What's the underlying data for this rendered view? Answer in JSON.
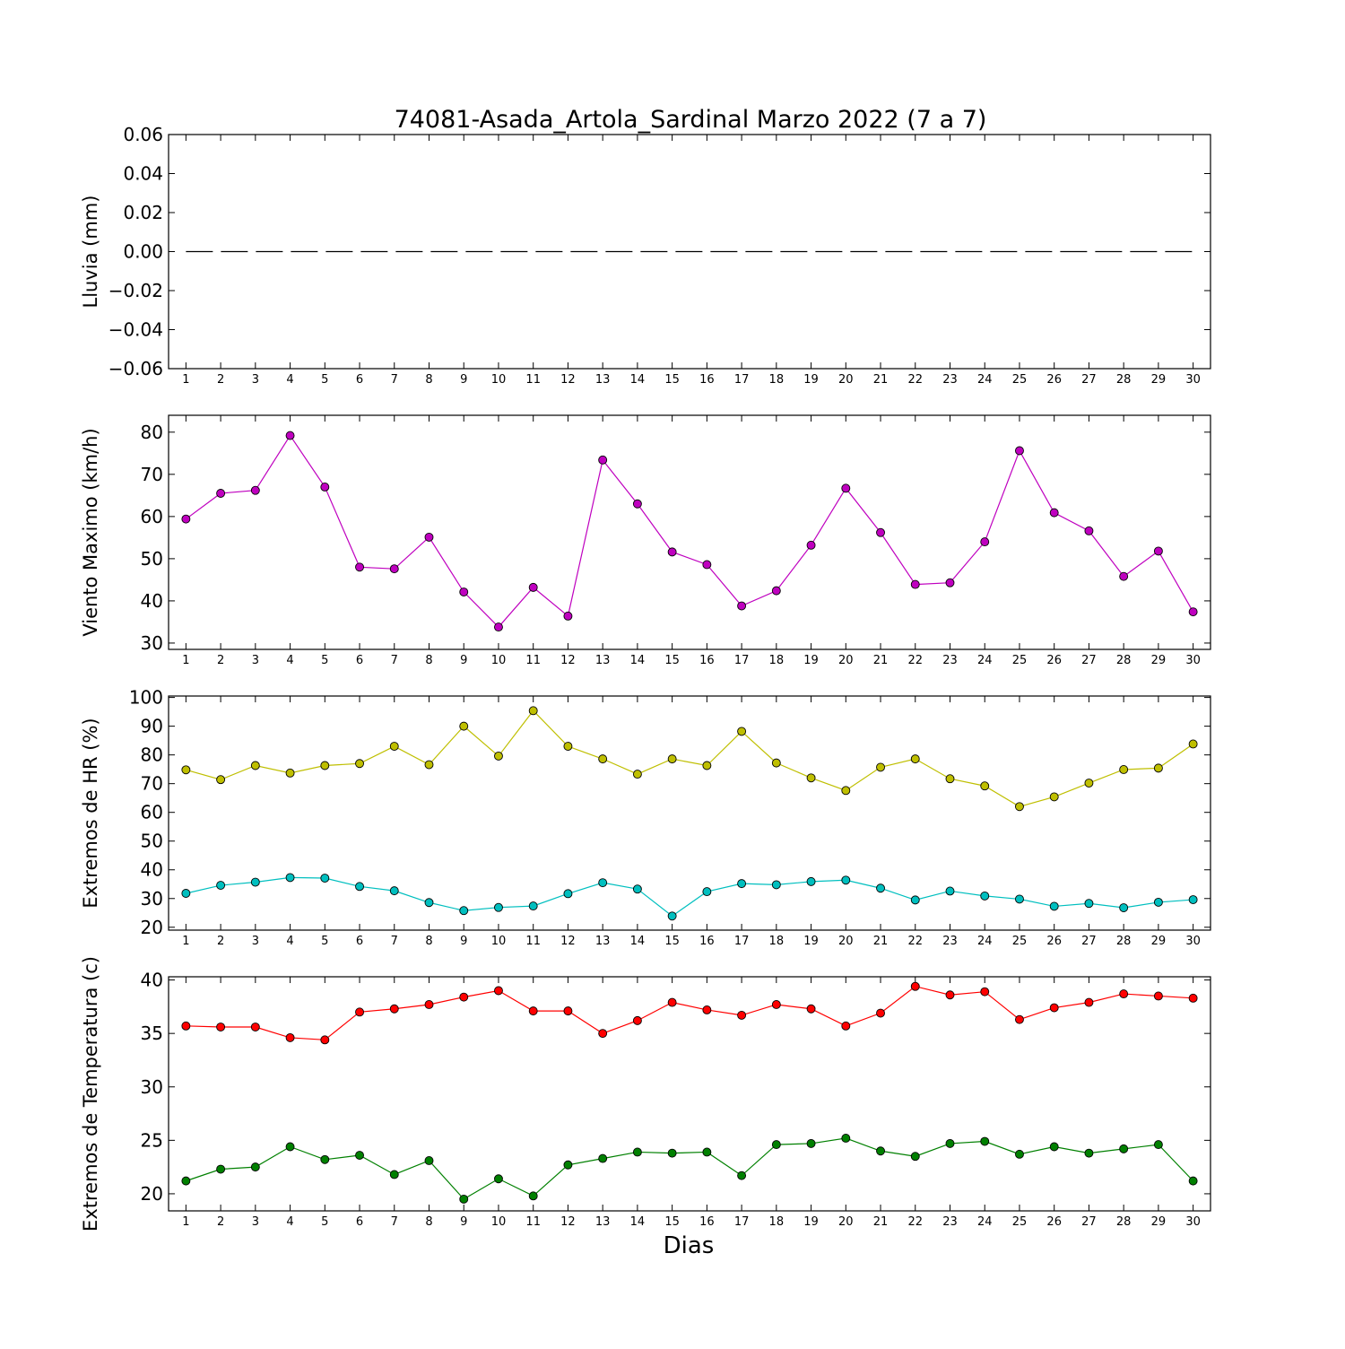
{
  "figure": {
    "title": "74081-Asada_Artola_Sardinal Marzo 2022  (7 a 7)",
    "xlabel": "Dias"
  },
  "chart_data": [
    {
      "type": "line",
      "ylabel": "Lluvia (mm)",
      "x": [
        1,
        2,
        3,
        4,
        5,
        6,
        7,
        8,
        9,
        10,
        11,
        12,
        13,
        14,
        15,
        16,
        17,
        18,
        19,
        20,
        21,
        22,
        23,
        24,
        25,
        26,
        27,
        28,
        29,
        30
      ],
      "xlim": [
        0.5,
        30.5
      ],
      "ylim": [
        -0.06,
        0.06
      ],
      "yticks": [
        -0.06,
        -0.04,
        -0.02,
        0.0,
        0.02,
        0.04,
        0.06
      ],
      "ytick_labels": [
        "−0.06",
        "−0.04",
        "−0.02",
        "0.00",
        "0.02",
        "0.04",
        "0.06"
      ],
      "series": [
        {
          "color": "#000000",
          "style": "dashed",
          "markers": false,
          "values": [
            0,
            0,
            0,
            0,
            0,
            0,
            0,
            0,
            0,
            0,
            0,
            0,
            0,
            0,
            0,
            0,
            0,
            0,
            0,
            0,
            0,
            0,
            0,
            0,
            0,
            0,
            0,
            0,
            0,
            0
          ]
        }
      ]
    },
    {
      "type": "line",
      "ylabel": "Viento Maximo (km/h)",
      "x": [
        1,
        2,
        3,
        4,
        5,
        6,
        7,
        8,
        9,
        10,
        11,
        12,
        13,
        14,
        15,
        16,
        17,
        18,
        19,
        20,
        21,
        22,
        23,
        24,
        25,
        26,
        27,
        28,
        29,
        30
      ],
      "xlim": [
        0.5,
        30.5
      ],
      "ylim": [
        28.5,
        84
      ],
      "yticks": [
        30,
        40,
        50,
        60,
        70,
        80
      ],
      "ytick_labels": [
        "30",
        "40",
        "50",
        "60",
        "70",
        "80"
      ],
      "series": [
        {
          "color": "#bf00bf",
          "style": "solid",
          "markers": true,
          "values": [
            59.4,
            65.5,
            66.2,
            79.2,
            67.0,
            48.0,
            47.6,
            55.1,
            42.1,
            33.8,
            43.2,
            36.4,
            73.4,
            63.0,
            51.6,
            48.6,
            38.8,
            42.4,
            53.2,
            66.7,
            56.2,
            43.9,
            44.3,
            54.0,
            75.6,
            60.9,
            56.6,
            45.8,
            51.8,
            37.4
          ]
        }
      ]
    },
    {
      "type": "line",
      "ylabel": "Extremos de HR (%)",
      "x": [
        1,
        2,
        3,
        4,
        5,
        6,
        7,
        8,
        9,
        10,
        11,
        12,
        13,
        14,
        15,
        16,
        17,
        18,
        19,
        20,
        21,
        22,
        23,
        24,
        25,
        26,
        27,
        28,
        29,
        30
      ],
      "xlim": [
        0.5,
        30.5
      ],
      "ylim": [
        19,
        100.5
      ],
      "yticks": [
        20,
        30,
        40,
        50,
        60,
        70,
        80,
        90,
        100
      ],
      "ytick_labels": [
        "20",
        "30",
        "40",
        "50",
        "60",
        "70",
        "80",
        "90",
        "100"
      ],
      "series": [
        {
          "color": "#bfbf00",
          "style": "solid",
          "markers": true,
          "values": [
            74.8,
            71.4,
            76.3,
            73.7,
            76.3,
            77.0,
            83.0,
            76.6,
            90.0,
            79.6,
            95.4,
            83.0,
            78.6,
            73.3,
            78.6,
            76.3,
            88.2,
            77.2,
            72.0,
            67.6,
            75.7,
            78.6,
            71.7,
            69.2,
            62.0,
            65.4,
            70.2,
            74.9,
            75.4,
            83.8
          ]
        },
        {
          "color": "#00bfbf",
          "style": "solid",
          "markers": true,
          "values": [
            31.8,
            34.6,
            35.7,
            37.3,
            37.1,
            34.2,
            32.7,
            28.6,
            25.8,
            26.9,
            27.4,
            31.7,
            35.5,
            33.3,
            23.9,
            32.4,
            35.2,
            34.8,
            35.9,
            36.4,
            33.6,
            29.5,
            32.6,
            30.9,
            29.8,
            27.3,
            28.3,
            26.8,
            28.7,
            29.6
          ]
        }
      ]
    },
    {
      "type": "line",
      "ylabel": "Extremos de Temperatura (c)",
      "x": [
        1,
        2,
        3,
        4,
        5,
        6,
        7,
        8,
        9,
        10,
        11,
        12,
        13,
        14,
        15,
        16,
        17,
        18,
        19,
        20,
        21,
        22,
        23,
        24,
        25,
        26,
        27,
        28,
        29,
        30
      ],
      "xlim": [
        0.5,
        30.5
      ],
      "ylim": [
        18.4,
        40.3
      ],
      "yticks": [
        20,
        25,
        30,
        35,
        40
      ],
      "ytick_labels": [
        "20",
        "25",
        "30",
        "35",
        "40"
      ],
      "series": [
        {
          "color": "#ff0000",
          "style": "solid",
          "markers": true,
          "values": [
            35.7,
            35.6,
            35.6,
            34.6,
            34.4,
            37.0,
            37.3,
            37.7,
            38.4,
            39.0,
            37.1,
            37.1,
            35.0,
            36.2,
            37.9,
            37.2,
            36.7,
            37.7,
            37.3,
            35.7,
            36.9,
            39.4,
            38.6,
            38.9,
            36.3,
            37.4,
            37.9,
            38.7,
            38.5,
            38.3
          ]
        },
        {
          "color": "#008000",
          "style": "solid",
          "markers": true,
          "values": [
            21.2,
            22.3,
            22.5,
            24.4,
            23.2,
            23.6,
            21.8,
            23.1,
            19.5,
            21.4,
            19.8,
            22.7,
            23.3,
            23.9,
            23.8,
            23.9,
            21.7,
            24.6,
            24.7,
            25.2,
            24.0,
            23.5,
            24.7,
            24.9,
            23.7,
            24.4,
            23.8,
            24.2,
            24.6,
            21.2
          ]
        }
      ]
    }
  ]
}
